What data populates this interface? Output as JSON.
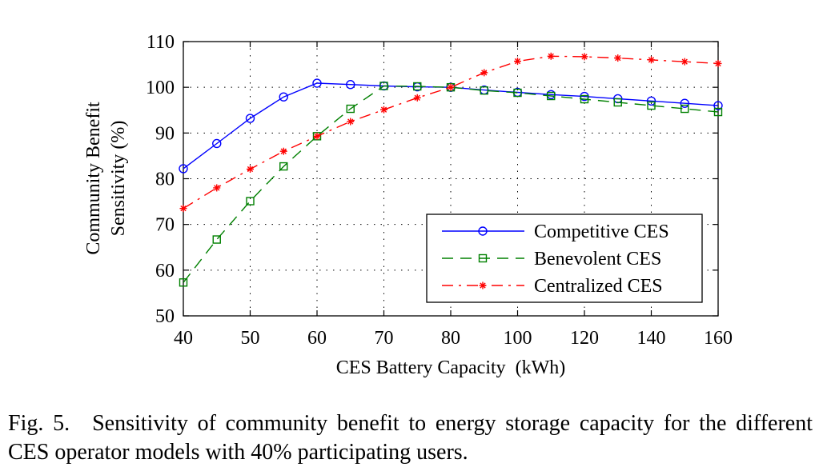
{
  "chart_data": {
    "type": "line",
    "xlabel": "CES Battery Capacity  (kWh)",
    "ylabel_line1": "Community Benefit",
    "ylabel_line2": "Sensitivity (%)",
    "x_ticks": [
      "40",
      "50",
      "60",
      "70",
      "80",
      "100",
      "120",
      "140",
      "160"
    ],
    "x_tick_values": [
      40,
      50,
      60,
      70,
      80,
      100,
      120,
      140,
      160
    ],
    "y_ticks": [
      "50",
      "60",
      "70",
      "80",
      "90",
      "100",
      "110"
    ],
    "ylim": [
      50,
      110
    ],
    "x_axis_note": "piecewise axis: 40-80 and 80-160 drawn at different scales",
    "grid": true,
    "legend_position": "bottom-right",
    "series": [
      {
        "name": "Competitive CES",
        "color": "#0000ff",
        "marker": "circle",
        "line": "solid",
        "x": [
          40,
          45,
          50,
          55,
          60,
          65,
          70,
          75,
          80,
          90,
          100,
          110,
          120,
          130,
          140,
          150,
          160
        ],
        "y": [
          82.2,
          87.7,
          93.2,
          97.9,
          100.9,
          100.6,
          100.3,
          100.1,
          100.0,
          99.4,
          98.9,
          98.4,
          98.0,
          97.5,
          97.0,
          96.5,
          96.0
        ]
      },
      {
        "name": "Benevolent CES",
        "color": "#008000",
        "marker": "square",
        "line": "dashed",
        "x": [
          40,
          45,
          50,
          55,
          60,
          65,
          70,
          75,
          80,
          90,
          100,
          110,
          120,
          130,
          140,
          150,
          160
        ],
        "y": [
          57.3,
          66.7,
          75.1,
          82.7,
          89.3,
          95.3,
          100.3,
          100.2,
          100.0,
          99.3,
          98.8,
          98.1,
          97.4,
          96.7,
          96.0,
          95.3,
          94.6
        ]
      },
      {
        "name": "Centralized CES",
        "color": "#ff0000",
        "marker": "asterisk",
        "line": "dash-dot",
        "x": [
          40,
          45,
          50,
          55,
          60,
          65,
          70,
          75,
          80,
          90,
          100,
          110,
          120,
          130,
          140,
          150,
          160
        ],
        "y": [
          73.5,
          78.0,
          82.1,
          86.0,
          89.3,
          92.5,
          95.1,
          97.7,
          100.0,
          103.2,
          105.7,
          106.8,
          106.7,
          106.4,
          106.0,
          105.6,
          105.2
        ]
      }
    ]
  },
  "caption": {
    "label": "Fig. 5.",
    "text": "Sensitivity of community benefit to energy storage capacity for the different CES operator models with 40% participating users."
  }
}
